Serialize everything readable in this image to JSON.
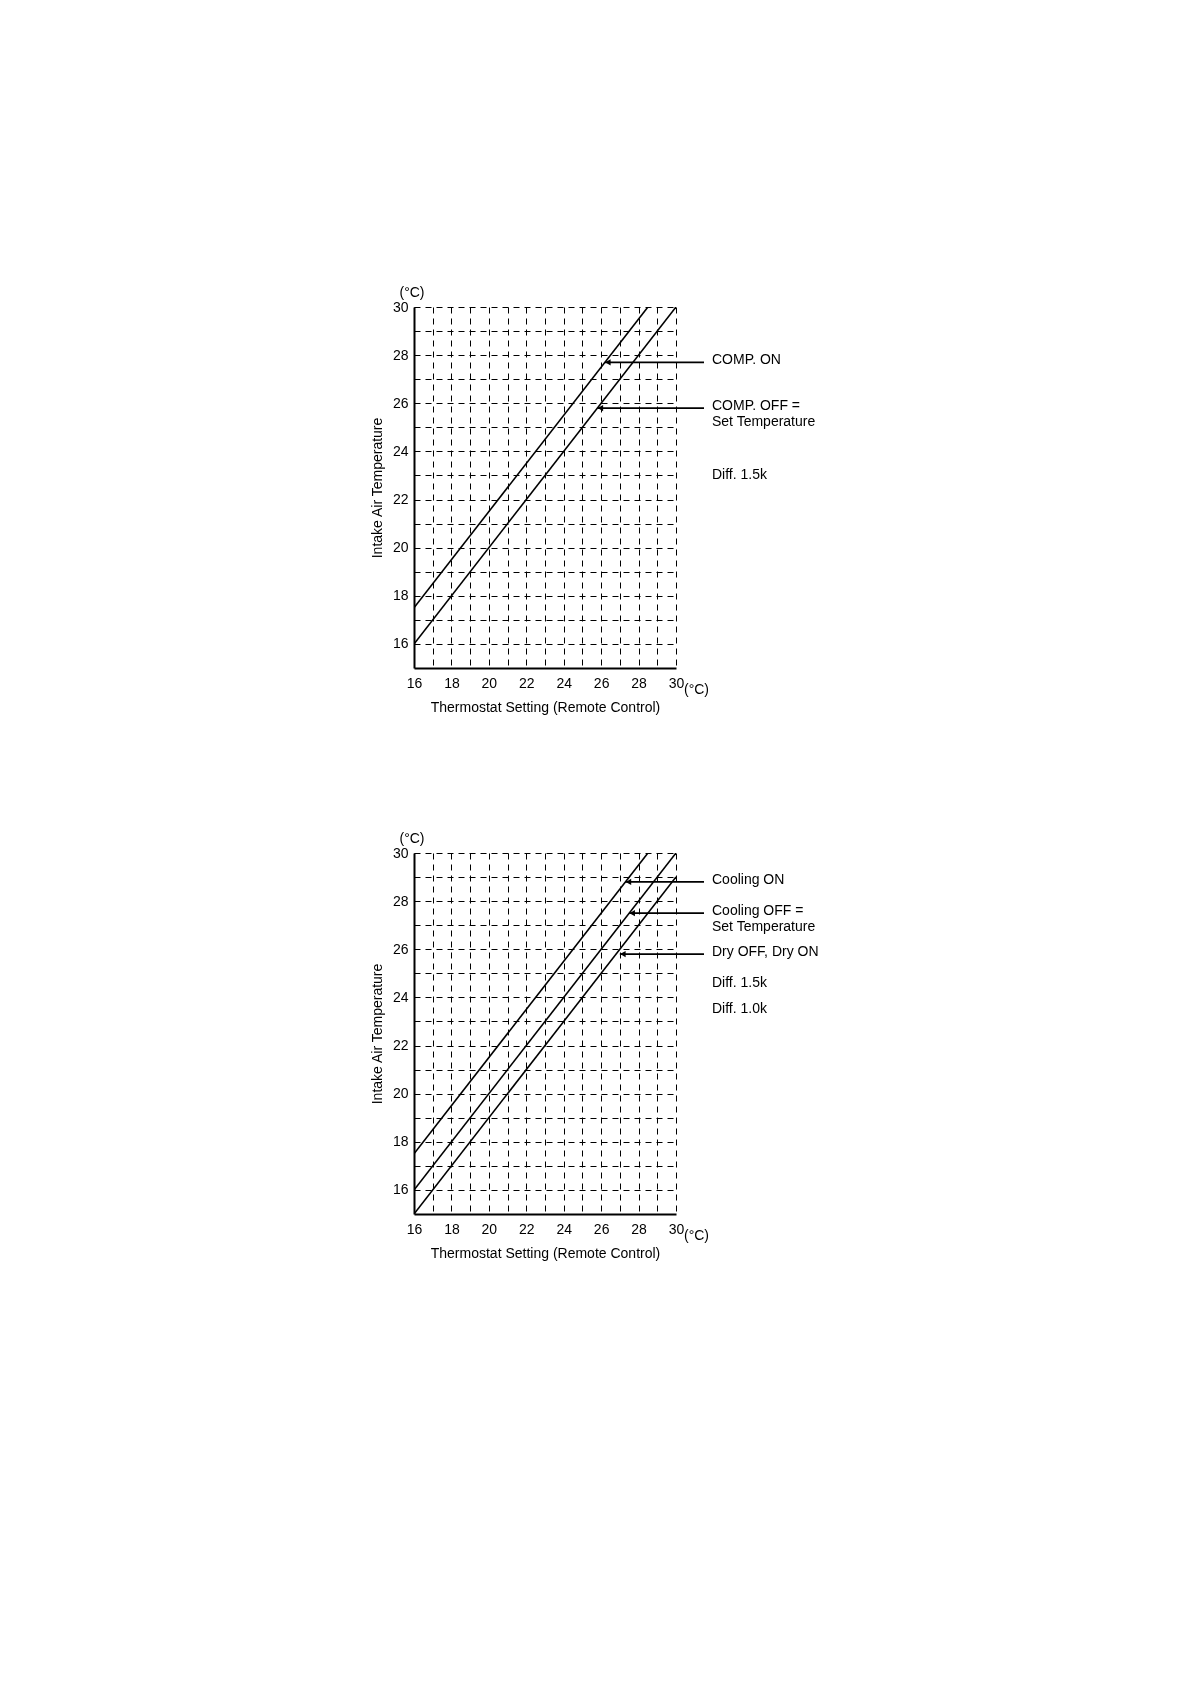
{
  "chart_data": [
    {
      "type": "line",
      "xlabel": "Thermostat Setting (Remote Control)",
      "ylabel": "Intake Air Temperature",
      "xlim": [
        16,
        30
      ],
      "ylim": [
        15,
        30
      ],
      "xticks": [
        16,
        {
          "value": 17,
          "label": null
        },
        18,
        {
          "value": 19,
          "label": null
        },
        20,
        {
          "value": 21,
          "label": null
        },
        22,
        {
          "value": 23,
          "label": null
        },
        24,
        {
          "value": 25,
          "label": null
        },
        26,
        {
          "value": 27,
          "label": null
        },
        28,
        {
          "value": 29,
          "label": null
        },
        30
      ],
      "yticks": [
        16,
        {
          "value": 17,
          "label": null
        },
        18,
        {
          "value": 19,
          "label": null
        },
        20,
        {
          "value": 21,
          "label": null
        },
        22,
        {
          "value": 23,
          "label": null
        },
        24,
        {
          "value": 25,
          "label": null
        },
        26,
        {
          "value": 27,
          "label": null
        },
        28,
        {
          "value": 29,
          "label": null
        },
        30
      ],
      "grid": true,
      "marker": "none",
      "line_style": "solid",
      "series": [
        {
          "color": "#000000",
          "x": [
            16,
            28.5
          ],
          "values": [
            17.5,
            30
          ]
        },
        {
          "color": "#000000",
          "x": [
            16,
            30
          ],
          "values": [
            16,
            30
          ]
        }
      ],
      "annotations": [
        "(°C)",
        "(°C)",
        {
          "text": "COMP. ON",
          "x": 26.2,
          "y": 27.7
        },
        {
          "text": "COMP. OFF =\nSet Temperature",
          "x": 25.8,
          "y": 25.8
        },
        "Diff. 1.5k"
      ]
    },
    {
      "type": "line",
      "xlabel": "Thermostat Setting (Remote Control)",
      "ylabel": "Intake Air Temperature",
      "xlim": [
        16,
        30
      ],
      "ylim": [
        15,
        30
      ],
      "xticks": [
        16,
        {
          "value": 17,
          "label": null
        },
        18,
        {
          "value": 19,
          "label": null
        },
        20,
        {
          "value": 21,
          "label": null
        },
        22,
        {
          "value": 23,
          "label": null
        },
        24,
        {
          "value": 25,
          "label": null
        },
        26,
        {
          "value": 27,
          "label": null
        },
        28,
        {
          "value": 29,
          "label": null
        },
        30
      ],
      "yticks": [
        16,
        {
          "value": 17,
          "label": null
        },
        18,
        {
          "value": 19,
          "label": null
        },
        20,
        {
          "value": 21,
          "label": null
        },
        22,
        {
          "value": 23,
          "label": null
        },
        24,
        {
          "value": 25,
          "label": null
        },
        26,
        {
          "value": 27,
          "label": null
        },
        28,
        {
          "value": 29,
          "label": null
        },
        30
      ],
      "grid": true,
      "marker": "none",
      "line_style": "solid",
      "series": [
        {
          "color": "#000000",
          "x": [
            16,
            28.5
          ],
          "values": [
            17.5,
            30
          ]
        },
        {
          "color": "#000000",
          "x": [
            16,
            30
          ],
          "values": [
            16,
            30
          ]
        },
        {
          "color": "#000000",
          "x": [
            16,
            30
          ],
          "values": [
            15,
            29
          ]
        }
      ],
      "annotations": [
        "(°C)",
        "(°C)",
        {
          "text": "Cooling ON",
          "x": 27.3,
          "y": 28.8
        },
        {
          "text": "Cooling OFF =\nSet Temperature",
          "x": 27.5,
          "y": 27.5
        },
        {
          "text": "Dry OFF, Dry ON",
          "x": 27,
          "y": 25.8
        },
        "Diff. 1.5k",
        "Diff. 1.0k"
      ]
    }
  ]
}
